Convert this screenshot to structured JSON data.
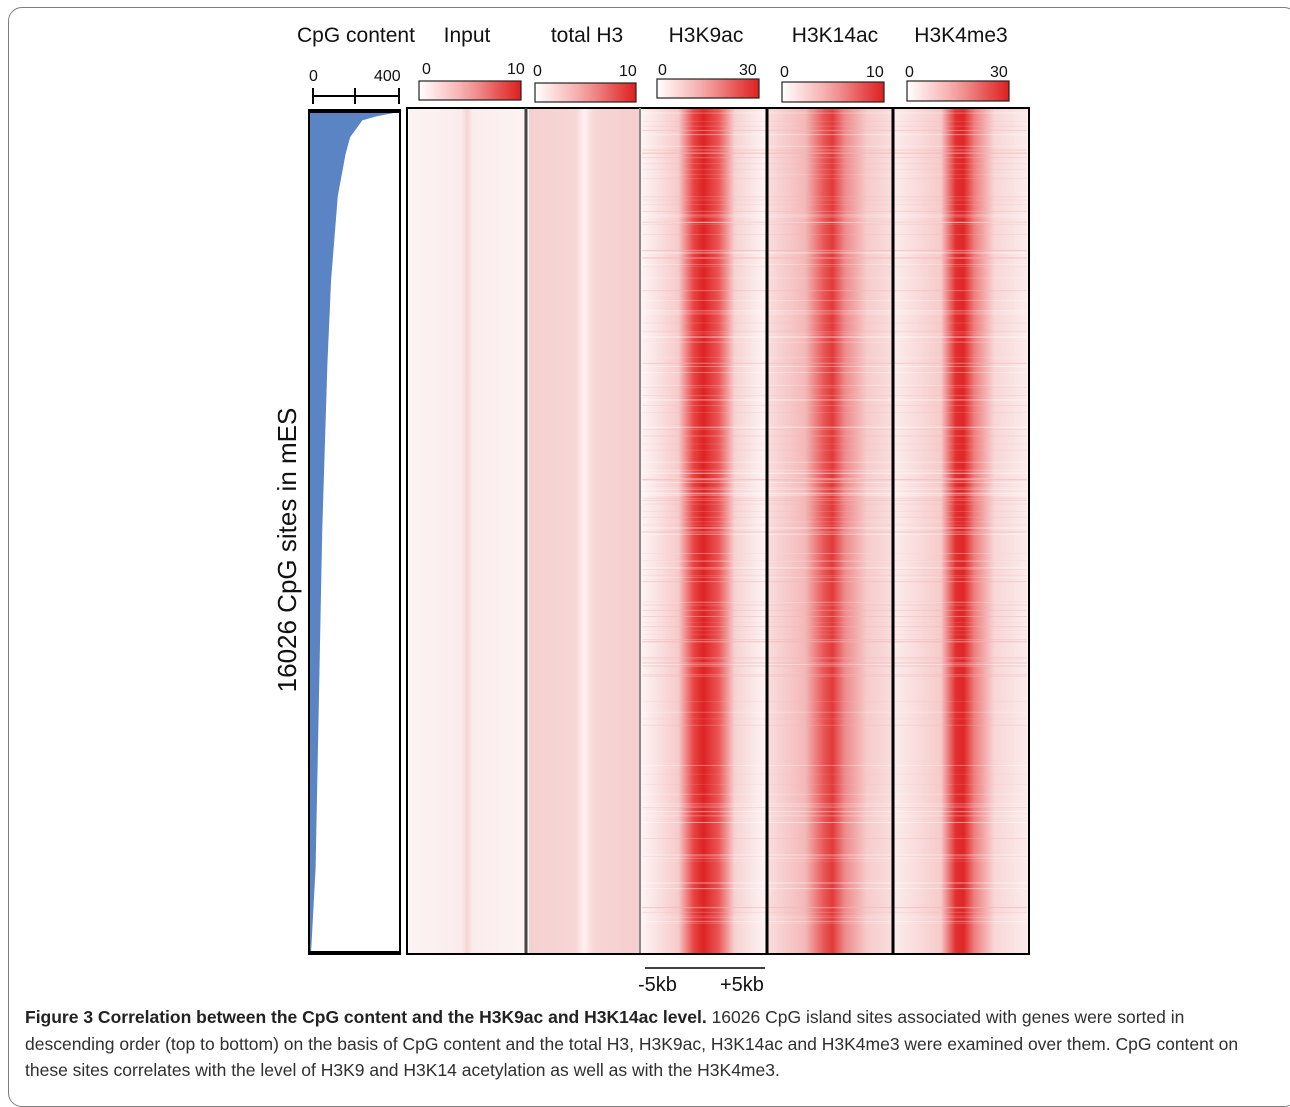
{
  "figure": {
    "heatmap_headers": [
      "Input",
      "total H3",
      "H3K9ac",
      "H3K14ac",
      "H3K4me3"
    ],
    "cpg_header": "CpG content",
    "cpg_scale": {
      "min": "0",
      "max": "400"
    },
    "y_label": "16026 CpG sites in mES",
    "x_left_label": "-5kb",
    "x_right_label": "+5kb",
    "colors": {
      "bar": "#5b84c4",
      "heat": "#e02020",
      "frame": "#000000"
    }
  },
  "chart_data": [
    {
      "type": "bar",
      "title": "CpG content",
      "orientation": "horizontal",
      "sorted": "descending",
      "xlim": [
        0,
        400
      ],
      "x_ticks": [
        "0",
        "400"
      ],
      "ylabel": "16026 CpG sites in mES",
      "n_sites": 16026,
      "values_profile": {
        "rank_fraction": [
          0.0,
          0.005,
          0.01,
          0.03,
          0.05,
          0.1,
          0.2,
          0.3,
          0.5,
          0.7,
          0.9,
          1.0
        ],
        "cpg_content": [
          400,
          300,
          235,
          180,
          160,
          125,
          95,
          78,
          55,
          40,
          25,
          5
        ]
      }
    },
    {
      "type": "heatmap",
      "rows": "16026 CpG sites (sorted by CpG content)",
      "x_range": [
        "-5kb",
        "+5kb"
      ],
      "panels": [
        {
          "name": "Input",
          "scale_min": "0",
          "scale_max": "10"
        },
        {
          "name": "total H3",
          "scale_min": "0",
          "scale_max": "10"
        },
        {
          "name": "H3K9ac",
          "scale_min": "0",
          "scale_max": "30"
        },
        {
          "name": "H3K14ac",
          "scale_min": "0",
          "scale_max": "10"
        },
        {
          "name": "H3K4me3",
          "scale_min": "0",
          "scale_max": "30"
        }
      ]
    }
  ],
  "caption": {
    "label": "Figure 3 Correlation between the CpG content and the H3K9ac and H3K14ac level.",
    "text": "16026 CpG island sites associated with genes were sorted in descending order (top to bottom) on the basis of CpG content and the total H3, H3K9ac, H3K14ac and H3K4me3 were examined over them. CpG content on these sites correlates with the level of H3K9 and H3K14 acetylation as well as with the H3K4me3."
  }
}
